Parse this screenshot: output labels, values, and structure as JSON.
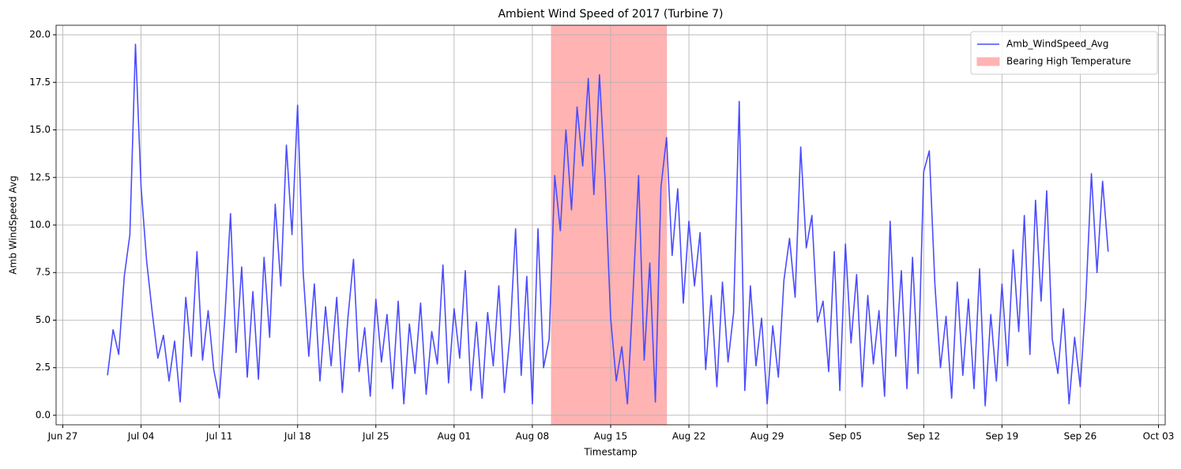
{
  "chart_data": {
    "type": "line",
    "title": "Ambient Wind Speed of 2017 (Turbine 7)",
    "x_label": "Timestamp",
    "y_label": "Amb WindSpeed Avg",
    "x": [
      182,
      182.5,
      183,
      183.5,
      184,
      184.5,
      185,
      185.5,
      186,
      186.5,
      187,
      187.5,
      188,
      188.5,
      189,
      189.5,
      190,
      190.5,
      191,
      191.5,
      192,
      192.5,
      193,
      193.5,
      194,
      194.5,
      195,
      195.5,
      196,
      196.5,
      197,
      197.5,
      198,
      198.5,
      199,
      199.5,
      200,
      200.5,
      201,
      201.5,
      202,
      202.5,
      203,
      203.5,
      204,
      204.5,
      205,
      205.5,
      206,
      206.5,
      207,
      207.5,
      208,
      208.5,
      209,
      209.5,
      210,
      210.5,
      211,
      211.5,
      212,
      212.5,
      213,
      213.5,
      214,
      214.5,
      215,
      215.5,
      216,
      216.5,
      217,
      217.5,
      218,
      218.5,
      219,
      219.5,
      220,
      220.5,
      221,
      221.5,
      222,
      222.5,
      223,
      223.5,
      224,
      224.5,
      225,
      225.5,
      226,
      226.5,
      227,
      227.5,
      228,
      228.5,
      229,
      229.5,
      230,
      230.5,
      231,
      231.5,
      232,
      232.5,
      233,
      233.5,
      234,
      234.5,
      235,
      235.5,
      236,
      236.5,
      237,
      237.5,
      238,
      238.5,
      239,
      239.5,
      240,
      240.5,
      241,
      241.5,
      242,
      242.5,
      243,
      243.5,
      244,
      244.5,
      245,
      245.5,
      246,
      246.5,
      247,
      247.5,
      248,
      248.5,
      249,
      249.5,
      250,
      250.5,
      251,
      251.5,
      252,
      252.5,
      253,
      253.5,
      254,
      254.5,
      255,
      255.5,
      256,
      256.5,
      257,
      257.5,
      258,
      258.5,
      259,
      259.5,
      260,
      260.5,
      261,
      261.5,
      262,
      262.5,
      263,
      263.5,
      264,
      264.5,
      265,
      265.5,
      266,
      266.5,
      267,
      267.5,
      268,
      268.5,
      269,
      269.5,
      270,
      270.5,
      271,
      271.5
    ],
    "series": [
      {
        "name": "Amb_WindSpeed_Avg",
        "color": "#4b4bff",
        "values": [
          2.1,
          4.5,
          3.2,
          7.3,
          9.5,
          19.5,
          12.0,
          8.1,
          5.4,
          3.0,
          4.2,
          1.8,
          3.9,
          0.7,
          6.2,
          3.1,
          8.6,
          2.9,
          5.5,
          2.4,
          0.9,
          5.2,
          10.6,
          3.3,
          7.8,
          2.0,
          6.5,
          1.9,
          8.3,
          4.1,
          11.1,
          6.8,
          14.2,
          9.5,
          16.3,
          7.5,
          3.1,
          6.9,
          1.8,
          5.7,
          2.6,
          6.2,
          1.2,
          5.1,
          8.2,
          2.3,
          4.6,
          1.0,
          6.1,
          2.8,
          5.3,
          1.4,
          6.0,
          0.6,
          4.8,
          2.2,
          5.9,
          1.1,
          4.4,
          2.7,
          7.9,
          1.7,
          5.6,
          3.0,
          7.6,
          1.3,
          4.9,
          0.9,
          5.4,
          2.6,
          6.8,
          1.2,
          4.2,
          9.8,
          2.1,
          7.3,
          0.6,
          9.8,
          2.5,
          4.0,
          12.6,
          9.7,
          15.0,
          10.8,
          16.2,
          13.1,
          17.7,
          11.6,
          17.9,
          12.4,
          5.1,
          1.8,
          3.6,
          0.6,
          6.4,
          12.6,
          2.9,
          8.0,
          0.7,
          12.0,
          14.6,
          8.4,
          11.9,
          5.9,
          10.2,
          6.8,
          9.6,
          2.4,
          6.3,
          1.5,
          7.0,
          2.8,
          5.4,
          16.5,
          1.3,
          6.8,
          2.6,
          5.1,
          0.6,
          4.7,
          2.0,
          7.1,
          9.3,
          6.2,
          14.1,
          8.8,
          10.5,
          4.9,
          6.0,
          2.3,
          8.6,
          1.3,
          9.0,
          3.8,
          7.4,
          1.5,
          6.3,
          2.7,
          5.5,
          1.0,
          10.2,
          3.1,
          7.6,
          1.4,
          8.3,
          2.2,
          12.8,
          13.9,
          6.9,
          2.5,
          5.2,
          0.9,
          7.0,
          2.1,
          6.1,
          1.4,
          7.7,
          0.5,
          5.3,
          1.8,
          6.9,
          2.6,
          8.7,
          4.4,
          10.5,
          3.2,
          11.3,
          6.0,
          11.8,
          4.0,
          2.2,
          5.6,
          0.6,
          4.1,
          1.5,
          6.1,
          12.7,
          7.5,
          12.3,
          8.6
        ]
      }
    ],
    "spans": [
      {
        "name": "Bearing High Temperature",
        "start": 221.7,
        "end": 232.0,
        "color": "#ffb3b3"
      }
    ],
    "xlim": [
      177.4,
      276.6
    ],
    "xticks": [
      {
        "value": 178,
        "label": "Jun 27"
      },
      {
        "value": 185,
        "label": "Jul 04"
      },
      {
        "value": 192,
        "label": "Jul 11"
      },
      {
        "value": 199,
        "label": "Jul 18"
      },
      {
        "value": 206,
        "label": "Jul 25"
      },
      {
        "value": 213,
        "label": "Aug 01"
      },
      {
        "value": 220,
        "label": "Aug 08"
      },
      {
        "value": 227,
        "label": "Aug 15"
      },
      {
        "value": 234,
        "label": "Aug 22"
      },
      {
        "value": 241,
        "label": "Aug 29"
      },
      {
        "value": 248,
        "label": "Sep 05"
      },
      {
        "value": 255,
        "label": "Sep 12"
      },
      {
        "value": 262,
        "label": "Sep 19"
      },
      {
        "value": 269,
        "label": "Sep 26"
      },
      {
        "value": 276,
        "label": "Oct 03"
      }
    ],
    "ylim": [
      -0.5,
      20.5
    ],
    "yticks": [
      {
        "value": 0,
        "label": "0.0"
      },
      2.5,
      {
        "value": 5,
        "label": "5.0"
      },
      7.5,
      {
        "value": 10,
        "label": "10.0"
      },
      12.5,
      {
        "value": 15,
        "label": "15.0"
      },
      17.5,
      {
        "value": 20,
        "label": "20.0"
      }
    ],
    "grid": true,
    "legend": "upper right"
  }
}
